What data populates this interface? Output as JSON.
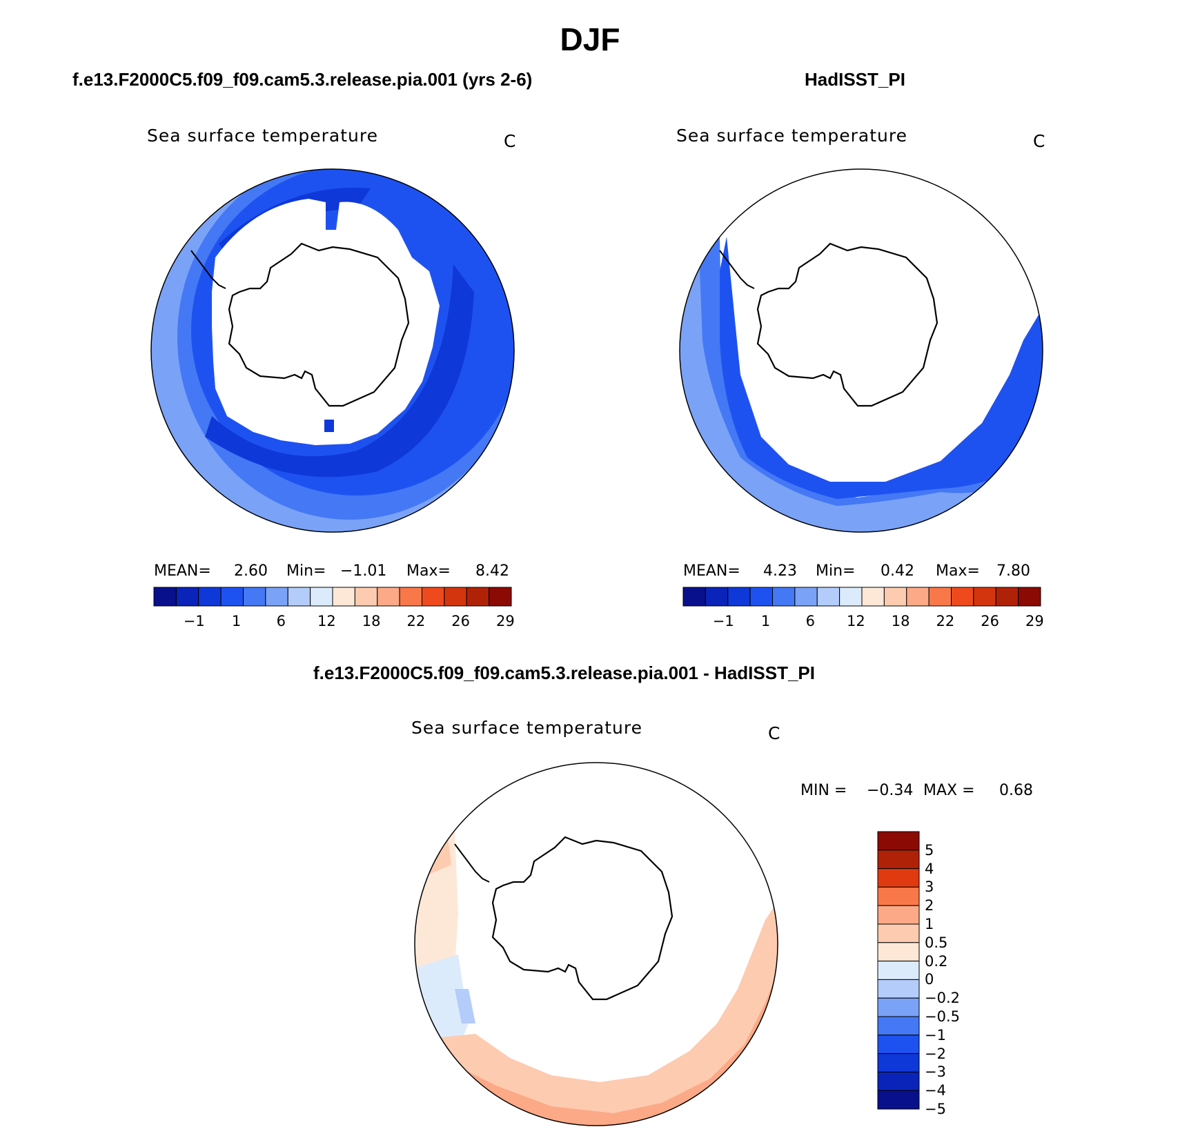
{
  "main_title": "DJF",
  "panels": [
    {
      "title": "f.e13.F2000C5.f09_f09.cam5.3.release.pia.001 (yrs 2-6)",
      "variable": "Sea surface temperature",
      "unit": "C",
      "stats": {
        "mean_label": "MEAN=",
        "mean": "2.60",
        "min_label": "Min=",
        "min": "−1.01",
        "max_label": "Max=",
        "max": "8.42"
      }
    },
    {
      "title": "HadISST_PI",
      "variable": "Sea surface temperature",
      "unit": "C",
      "stats": {
        "mean_label": "MEAN=",
        "mean": "4.23",
        "min_label": "Min=",
        "min": "0.42",
        "max_label": "Max=",
        "max": "7.80"
      }
    },
    {
      "title": "f.e13.F2000C5.f09_f09.cam5.3.release.pia.001 - HadISST_PI",
      "variable": "Sea surface temperature",
      "unit": "C",
      "stats": {
        "min_label": "MIN =",
        "min": "−0.34",
        "max_label": "MAX =",
        "max": "0.68"
      }
    }
  ],
  "colorbar_abs": {
    "colors": [
      "#08108c",
      "#0a23b8",
      "#0f38d8",
      "#1e52f0",
      "#4478f5",
      "#7aa2f7",
      "#b3ccfa",
      "#dcebfb",
      "#fde8d8",
      "#fdcbb0",
      "#fca987",
      "#f9784a",
      "#ee4a1e",
      "#d3350e",
      "#b02208",
      "#8c0a04"
    ],
    "tick_labels": [
      "−1",
      "1",
      "6",
      "12",
      "18",
      "22",
      "26",
      "29"
    ]
  },
  "colorbar_diff": {
    "colors": [
      "#8c0a04",
      "#b02208",
      "#e03a10",
      "#f9784a",
      "#fca987",
      "#fdcbb0",
      "#fde8d8",
      "#dcebfb",
      "#b3ccfa",
      "#7aa2f7",
      "#4478f5",
      "#1e52f0",
      "#0f38d8",
      "#0a23b8",
      "#08108c"
    ],
    "tick_labels": [
      "5",
      "4",
      "3",
      "2",
      "1",
      "0.5",
      "0.2",
      "0",
      "−0.2",
      "−0.5",
      "−1",
      "−2",
      "−3",
      "−4",
      "−5"
    ]
  },
  "map_colors": {
    "deep": "#0f38d8",
    "mid": "#1e52f0",
    "light": "#4478f5",
    "lighter": "#7aa2f7",
    "diff_warm1": "#fde8d8",
    "diff_warm2": "#fdcbb0",
    "diff_warm3": "#fca987",
    "diff_cool1": "#dcebfb",
    "diff_cool2": "#b3ccfa"
  }
}
